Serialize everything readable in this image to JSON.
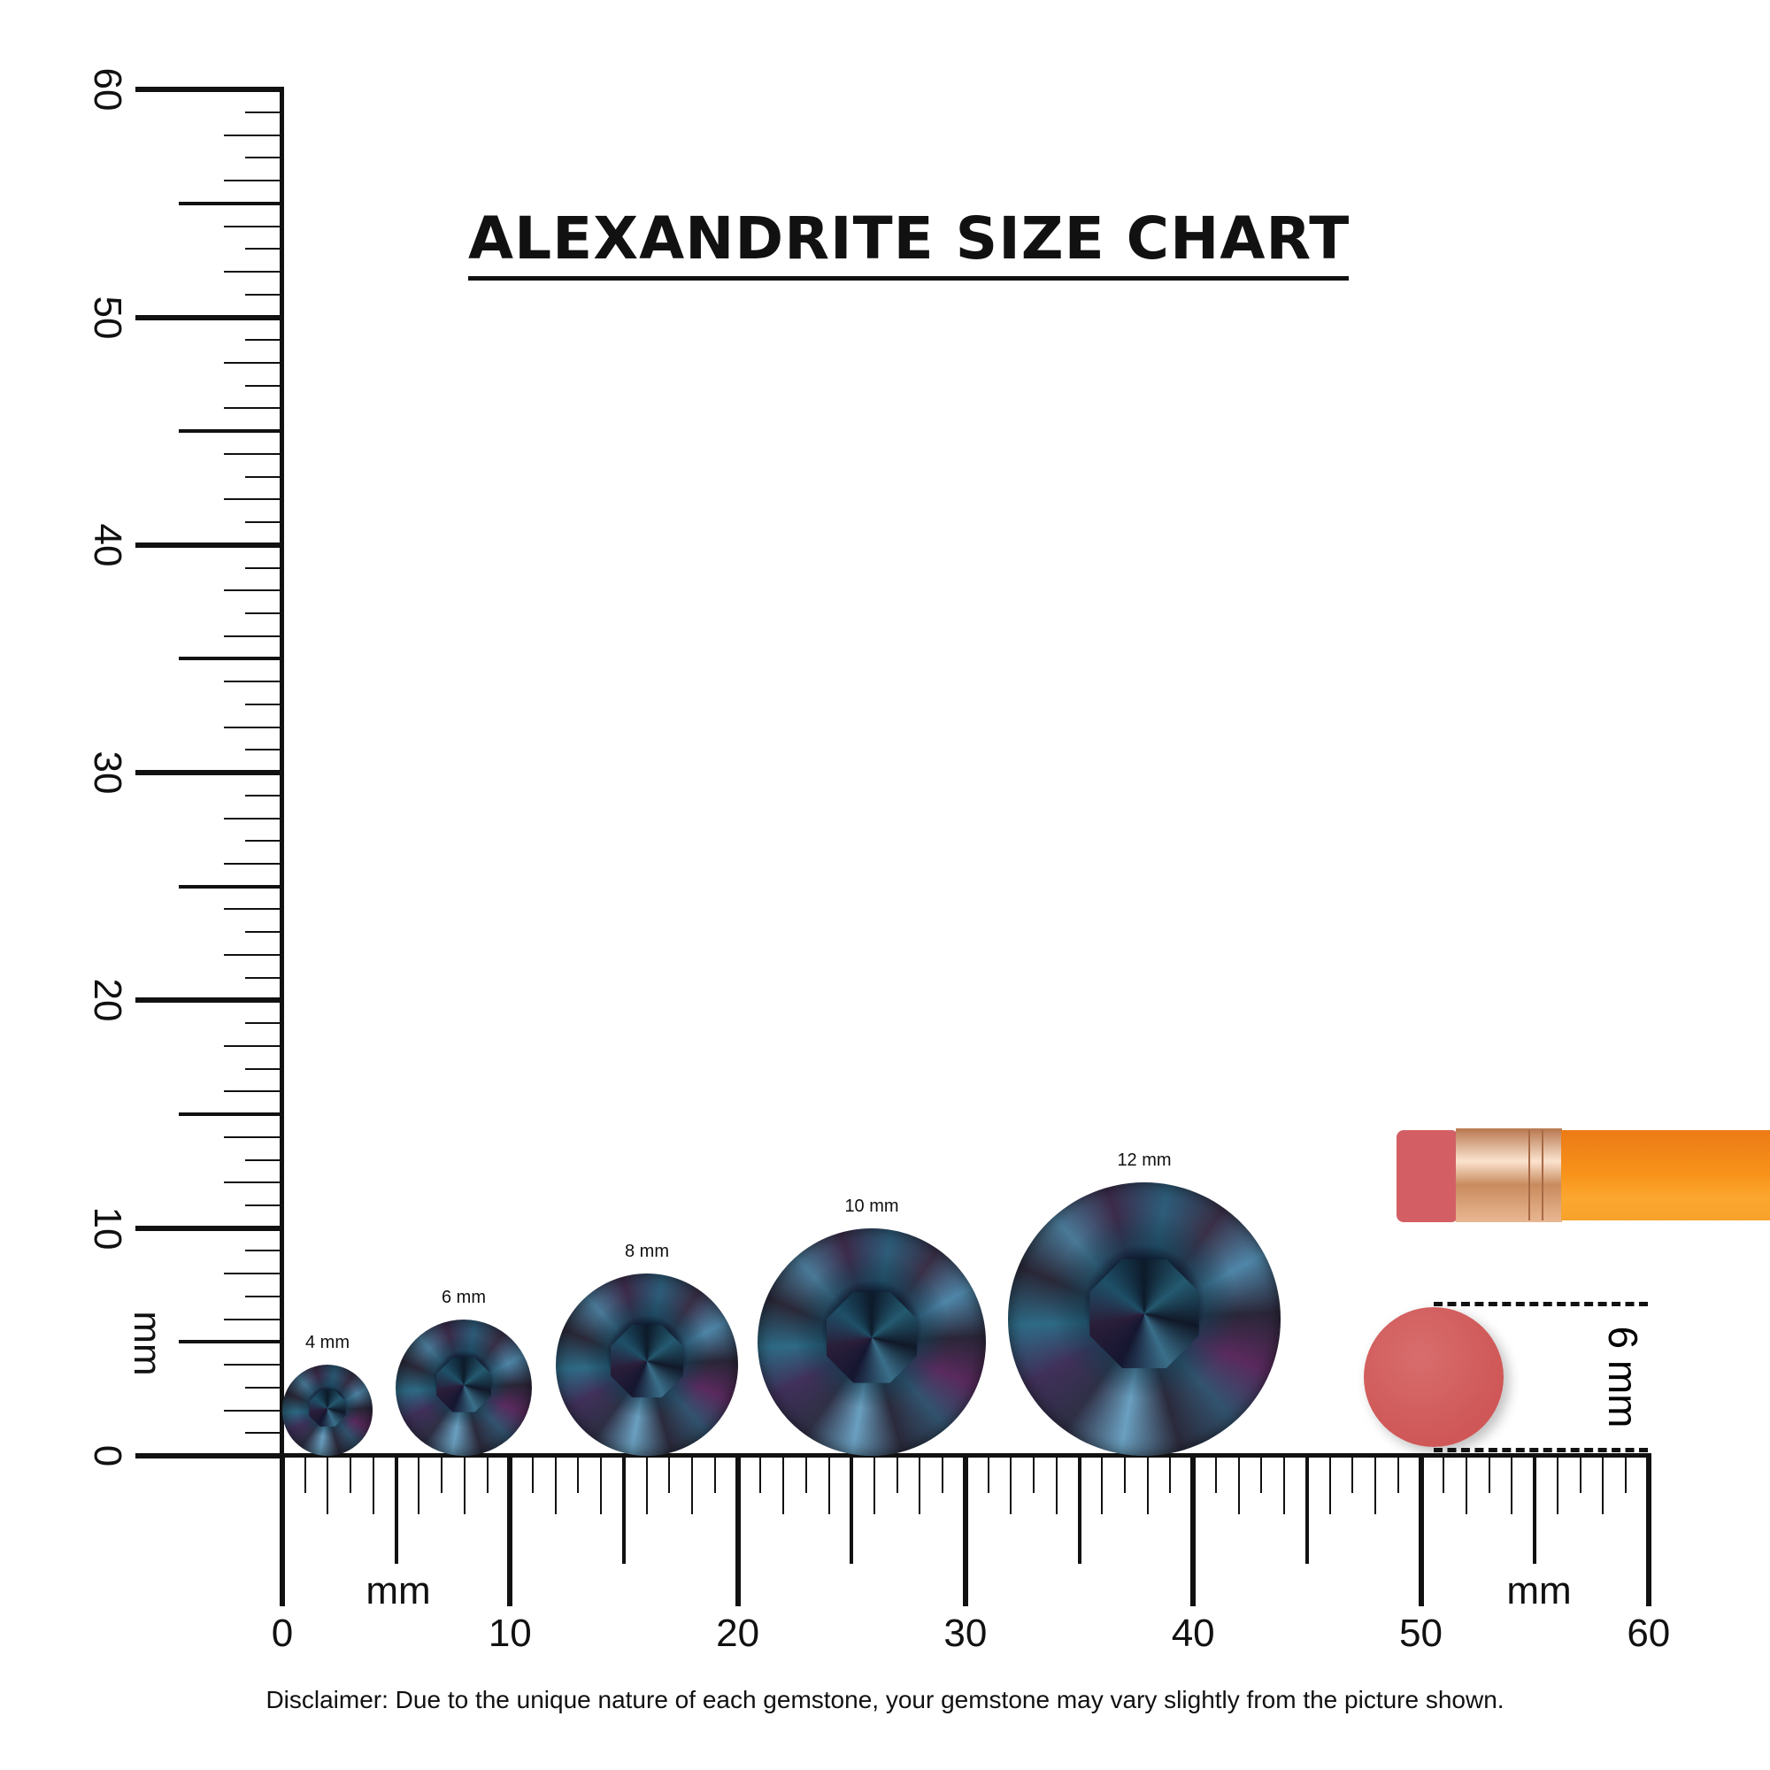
{
  "title": "ALEXANDRITE SIZE CHART",
  "vertical_ruler": {
    "unit_label": "mm",
    "labels": [
      "0",
      "10",
      "20",
      "30",
      "40",
      "50",
      "60"
    ],
    "range_mm": [
      0,
      60
    ]
  },
  "horizontal_ruler": {
    "unit_label_left": "mm",
    "unit_label_right": "mm",
    "labels": [
      "0",
      "10",
      "20",
      "30",
      "40",
      "50",
      "60"
    ],
    "range_mm": [
      0,
      60
    ]
  },
  "gemstones": [
    {
      "label": "4 mm",
      "size_mm": 4
    },
    {
      "label": "6 mm",
      "size_mm": 6
    },
    {
      "label": "8 mm",
      "size_mm": 8
    },
    {
      "label": "10 mm",
      "size_mm": 10
    },
    {
      "label": "12 mm",
      "size_mm": 12
    }
  ],
  "reference": {
    "label": "6 mm",
    "object": "pencil eraser",
    "size_mm": 6
  },
  "colors": {
    "gem_dark": "#2a2638",
    "gem_teal": "#4f86a8",
    "eraser": "#cf5757",
    "pencil_body": "#f7931e",
    "ferrule": "#d9a27a"
  },
  "disclaimer": "Disclaimer: Due to the unique nature of each gemstone, your gemstone may vary slightly from the picture shown."
}
